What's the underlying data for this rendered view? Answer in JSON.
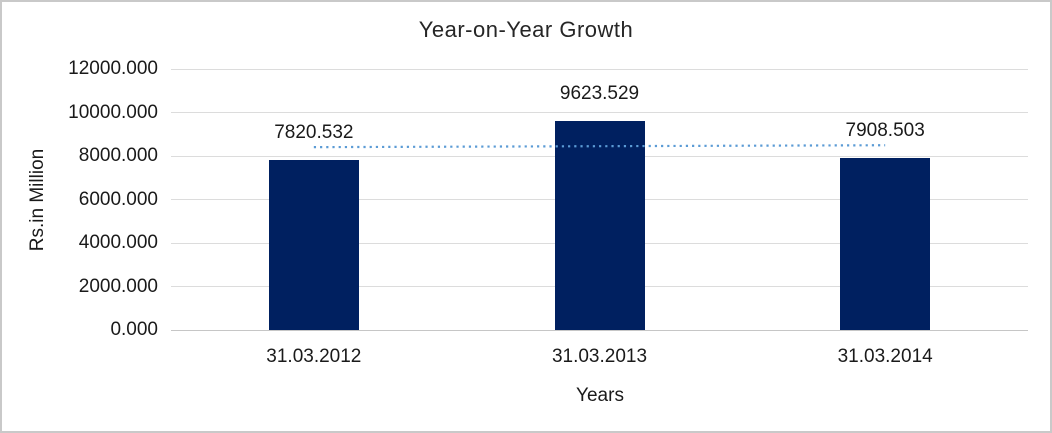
{
  "chart_data": {
    "type": "bar",
    "title": "Year-on-Year Growth",
    "xlabel": "Years",
    "ylabel": "Rs.in Million",
    "categories": [
      "31.03.2012",
      "31.03.2013",
      "31.03.2014"
    ],
    "values": [
      7820.532,
      9623.529,
      7908.503
    ],
    "value_labels": [
      "7820.532",
      "9623.529",
      "7908.503"
    ],
    "ylim": [
      0,
      12000
    ],
    "ytick_step": 2000,
    "ytick_labels": [
      "0.000",
      "2000.000",
      "4000.000",
      "6000.000",
      "8000.000",
      "10000.000",
      "12000.000"
    ],
    "grid": true,
    "legend": "none",
    "bar_color": "#002060",
    "trendline": {
      "type": "linear",
      "style": "dotted",
      "color": "#5B9BD5",
      "start_value": 8406.9,
      "end_value": 8494.8
    }
  },
  "colors": {
    "background": "#FFFFFF",
    "border": "#C9C9C9",
    "gridline": "#DCDCDC",
    "axis_line": "#C6C6C6",
    "text": "#1A1A1A"
  }
}
